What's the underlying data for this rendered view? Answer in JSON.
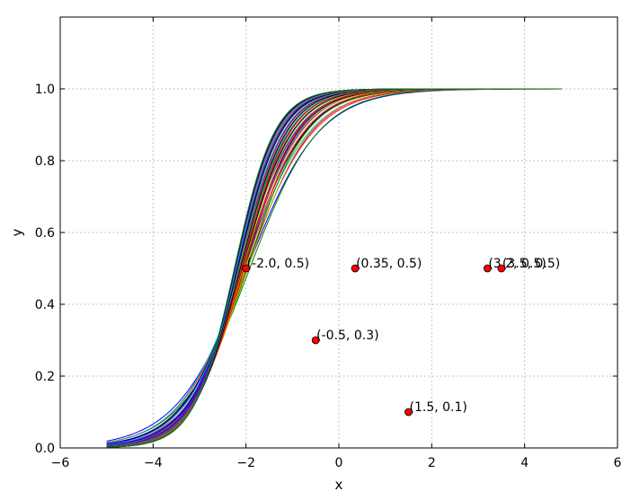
{
  "chart_data": {
    "type": "line",
    "xlabel": "x",
    "ylabel": "y",
    "xlim": [
      -6,
      6
    ],
    "ylim": [
      0,
      1.2
    ],
    "grid": true,
    "x_ticks": [
      "−6",
      "−4",
      "−2",
      "0",
      "2",
      "4",
      "6"
    ],
    "y_ticks": [
      "0.0",
      "0.2",
      "0.4",
      "0.6",
      "0.8",
      "1.0"
    ],
    "x_tick_values": [
      -6,
      -4,
      -2,
      0,
      2,
      4,
      6
    ],
    "y_tick_values": [
      0,
      0.2,
      0.4,
      0.6,
      0.8,
      1.0
    ],
    "curve_family": {
      "description": "many logistic curves y = 1/(1+exp(-k(x-x0)))",
      "x_range": [
        -5,
        4.8
      ],
      "x0_range": [
        -2.25,
        -1.85
      ],
      "k_range": [
        1.3,
        2.3
      ],
      "count": 44,
      "colors": [
        "#0000ff",
        "#008000",
        "#ff0000",
        "#00bfbf",
        "#bf00bf",
        "#bfbf00",
        "#000000"
      ]
    },
    "points": [
      {
        "x": -2.0,
        "y": 0.5,
        "label": "(-2.0, 0.5)"
      },
      {
        "x": 0.35,
        "y": 0.5,
        "label": "(0.35, 0.5)"
      },
      {
        "x": 3.2,
        "y": 0.5,
        "label": "(3.2, 0.5)"
      },
      {
        "x": 3.5,
        "y": 0.5,
        "label": "(3.5, 0.5)"
      },
      {
        "x": -0.5,
        "y": 0.3,
        "label": "(-0.5, 0.3)"
      },
      {
        "x": 1.5,
        "y": 0.1,
        "label": "(1.5, 0.1)"
      }
    ],
    "point_color": "#ff0000"
  }
}
